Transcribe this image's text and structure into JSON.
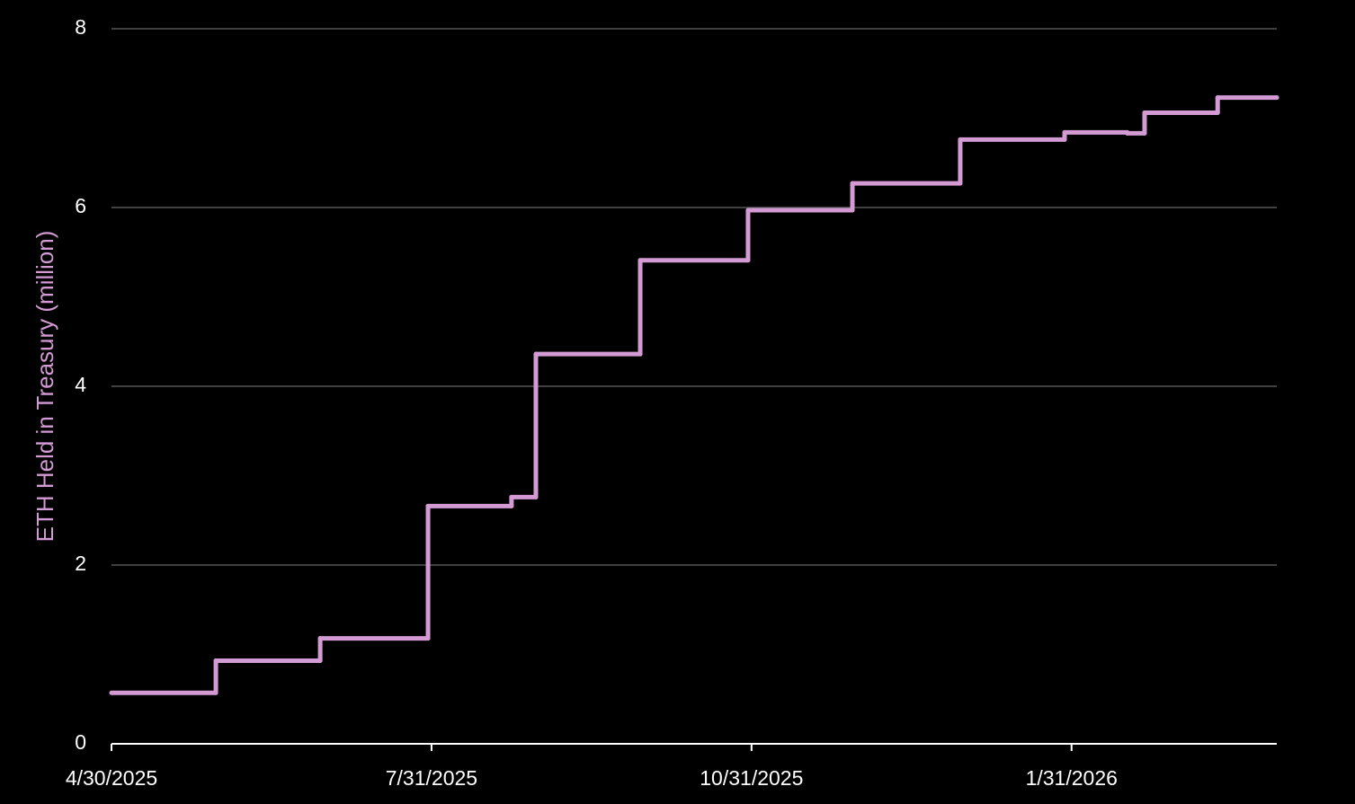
{
  "chart_data": {
    "type": "line",
    "drawstyle": "steps-post",
    "y_label": "ETH Held in Treasury (million)",
    "x": [
      "4/30/2025",
      "5/30/2025",
      "6/29/2025",
      "7/30/2025",
      "8/23/2025",
      "8/30/2025",
      "9/29/2025",
      "10/30/2025",
      "11/29/2025",
      "12/30/2025",
      "1/29/2026",
      "2/16/2026",
      "2/21/2026",
      "3/14/2026",
      "3/31/2026"
    ],
    "series": [
      {
        "color": "#d49ad4",
        "values": [
          0.57,
          0.93,
          1.18,
          2.66,
          2.76,
          4.36,
          5.41,
          5.97,
          6.27,
          6.76,
          6.84,
          6.83,
          7.06,
          7.23,
          7.23
        ]
      }
    ],
    "xlim": [
      "4/30/2025",
      "3/31/2026"
    ],
    "xticks": [
      "4/30/2025",
      "7/31/2025",
      "10/31/2025",
      "1/31/2026"
    ],
    "ylim": [
      0,
      8
    ],
    "yticks": [
      0,
      2,
      4,
      6,
      8
    ],
    "grid": true
  }
}
